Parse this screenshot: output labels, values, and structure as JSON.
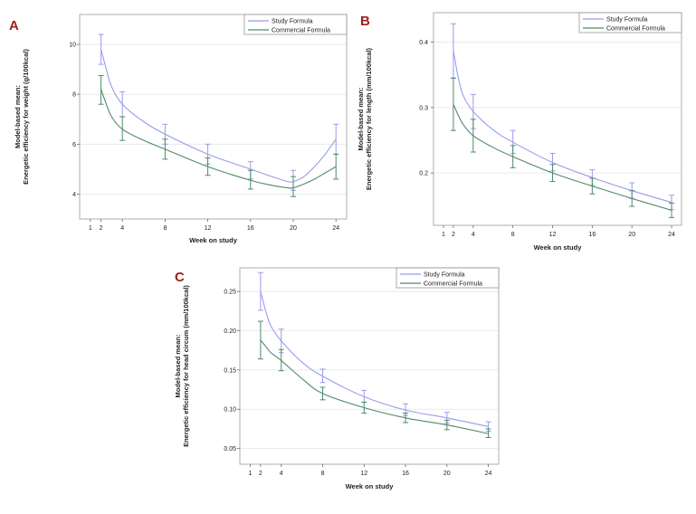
{
  "chart_data": [
    {
      "panel": "A",
      "type": "line",
      "ylabel_lines": [
        "Model-based mean:",
        "Energetic efficiency for weight (g/100kcal)"
      ],
      "xlabel": "Week on study",
      "x_ticks": [
        1,
        2,
        4,
        8,
        12,
        16,
        20,
        24
      ],
      "y_ticks": [
        4,
        6,
        8,
        10
      ],
      "xlim": [
        0,
        25
      ],
      "ylim": [
        3.0,
        11.2
      ],
      "grid": true,
      "legend_position": "top-right",
      "series": [
        {
          "name": "Study Formula",
          "color": "#9a9aec",
          "points": [
            {
              "x": 2,
              "y": 9.8,
              "lo": 9.2,
              "hi": 10.4
            },
            {
              "x": 4,
              "y": 7.6,
              "lo": 7.1,
              "hi": 8.1
            },
            {
              "x": 8,
              "y": 6.4,
              "lo": 6.0,
              "hi": 6.8
            },
            {
              "x": 12,
              "y": 5.6,
              "lo": 5.2,
              "hi": 6.0
            },
            {
              "x": 16,
              "y": 5.0,
              "lo": 4.6,
              "hi": 5.3
            },
            {
              "x": 20,
              "y": 4.55,
              "lo": 4.15,
              "hi": 4.95
            },
            {
              "x": 24,
              "y": 6.2,
              "lo": 5.6,
              "hi": 6.8
            }
          ],
          "curve": [
            [
              2,
              9.8
            ],
            [
              2.5,
              9.0
            ],
            [
              3,
              8.3
            ],
            [
              4,
              7.6
            ],
            [
              6,
              6.9
            ],
            [
              8,
              6.4
            ],
            [
              12,
              5.6
            ],
            [
              16,
              5.0
            ],
            [
              18,
              4.7
            ],
            [
              19.5,
              4.5
            ],
            [
              20,
              4.5
            ],
            [
              21,
              4.7
            ],
            [
              22,
              5.1
            ],
            [
              23,
              5.6
            ],
            [
              24,
              6.2
            ]
          ]
        },
        {
          "name": "Commercial Formula",
          "color": "#4e8a6c",
          "points": [
            {
              "x": 2,
              "y": 8.2,
              "lo": 7.6,
              "hi": 8.75
            },
            {
              "x": 4,
              "y": 6.6,
              "lo": 6.15,
              "hi": 7.1
            },
            {
              "x": 8,
              "y": 5.8,
              "lo": 5.4,
              "hi": 6.2
            },
            {
              "x": 12,
              "y": 5.1,
              "lo": 4.75,
              "hi": 5.45
            },
            {
              "x": 16,
              "y": 4.6,
              "lo": 4.2,
              "hi": 4.95
            },
            {
              "x": 20,
              "y": 4.3,
              "lo": 3.9,
              "hi": 4.7
            },
            {
              "x": 24,
              "y": 5.1,
              "lo": 4.6,
              "hi": 5.6
            }
          ],
          "curve": [
            [
              2,
              8.2
            ],
            [
              2.5,
              7.6
            ],
            [
              3,
              7.1
            ],
            [
              4,
              6.6
            ],
            [
              6,
              6.15
            ],
            [
              8,
              5.8
            ],
            [
              12,
              5.1
            ],
            [
              16,
              4.55
            ],
            [
              18,
              4.35
            ],
            [
              19.5,
              4.25
            ],
            [
              20,
              4.25
            ],
            [
              21,
              4.4
            ],
            [
              22,
              4.6
            ],
            [
              23,
              4.85
            ],
            [
              24,
              5.1
            ]
          ]
        }
      ]
    },
    {
      "panel": "B",
      "type": "line",
      "ylabel_lines": [
        "Model-based mean:",
        "Energetic efficiency for length (mm/100kcal)"
      ],
      "xlabel": "Week on study",
      "x_ticks": [
        1,
        2,
        4,
        8,
        12,
        16,
        20,
        24
      ],
      "y_ticks": [
        0.2,
        0.3,
        0.4
      ],
      "xlim": [
        0,
        25
      ],
      "ylim": [
        0.12,
        0.445
      ],
      "grid": true,
      "legend_position": "top-right",
      "series": [
        {
          "name": "Study Formula",
          "color": "#9a9aec",
          "points": [
            {
              "x": 2,
              "y": 0.387,
              "lo": 0.345,
              "hi": 0.428
            },
            {
              "x": 4,
              "y": 0.294,
              "lo": 0.268,
              "hi": 0.32
            },
            {
              "x": 8,
              "y": 0.247,
              "lo": 0.23,
              "hi": 0.265
            },
            {
              "x": 12,
              "y": 0.216,
              "lo": 0.203,
              "hi": 0.23
            },
            {
              "x": 16,
              "y": 0.193,
              "lo": 0.181,
              "hi": 0.205
            },
            {
              "x": 20,
              "y": 0.173,
              "lo": 0.161,
              "hi": 0.185
            },
            {
              "x": 24,
              "y": 0.155,
              "lo": 0.144,
              "hi": 0.166
            }
          ],
          "curve": [
            [
              2,
              0.387
            ],
            [
              2.5,
              0.345
            ],
            [
              3,
              0.318
            ],
            [
              4,
              0.294
            ],
            [
              6,
              0.266
            ],
            [
              8,
              0.247
            ],
            [
              12,
              0.216
            ],
            [
              16,
              0.193
            ],
            [
              20,
              0.173
            ],
            [
              24,
              0.155
            ]
          ]
        },
        {
          "name": "Commercial Formula",
          "color": "#4e8a6c",
          "points": [
            {
              "x": 2,
              "y": 0.305,
              "lo": 0.265,
              "hi": 0.345
            },
            {
              "x": 4,
              "y": 0.257,
              "lo": 0.232,
              "hi": 0.282
            },
            {
              "x": 8,
              "y": 0.225,
              "lo": 0.208,
              "hi": 0.242
            },
            {
              "x": 12,
              "y": 0.2,
              "lo": 0.187,
              "hi": 0.213
            },
            {
              "x": 16,
              "y": 0.18,
              "lo": 0.168,
              "hi": 0.192
            },
            {
              "x": 20,
              "y": 0.161,
              "lo": 0.149,
              "hi": 0.173
            },
            {
              "x": 24,
              "y": 0.143,
              "lo": 0.132,
              "hi": 0.154
            }
          ],
          "curve": [
            [
              2,
              0.305
            ],
            [
              2.5,
              0.288
            ],
            [
              3,
              0.274
            ],
            [
              4,
              0.257
            ],
            [
              6,
              0.239
            ],
            [
              8,
              0.225
            ],
            [
              12,
              0.2
            ],
            [
              16,
              0.18
            ],
            [
              20,
              0.161
            ],
            [
              24,
              0.143
            ]
          ]
        }
      ]
    },
    {
      "panel": "C",
      "type": "line",
      "ylabel_lines": [
        "Model-based mean:",
        "Energetic efficiency for head circum (mm/100kcal)"
      ],
      "xlabel": "Week on study",
      "x_ticks": [
        1,
        2,
        4,
        8,
        12,
        16,
        20,
        24
      ],
      "y_ticks": [
        0.05,
        0.1,
        0.15,
        0.2,
        0.25
      ],
      "y_tick_labels": [
        "0.05",
        "0.10",
        "0.15",
        "0.20",
        "0.25"
      ],
      "xlim": [
        0,
        25
      ],
      "ylim": [
        0.03,
        0.28
      ],
      "grid": true,
      "legend_position": "top-right",
      "series": [
        {
          "name": "Study Formula",
          "color": "#9a9aec",
          "points": [
            {
              "x": 2,
              "y": 0.25,
              "lo": 0.226,
              "hi": 0.274
            },
            {
              "x": 4,
              "y": 0.187,
              "lo": 0.172,
              "hi": 0.202
            },
            {
              "x": 8,
              "y": 0.142,
              "lo": 0.134,
              "hi": 0.151
            },
            {
              "x": 12,
              "y": 0.116,
              "lo": 0.109,
              "hi": 0.124
            },
            {
              "x": 16,
              "y": 0.099,
              "lo": 0.092,
              "hi": 0.107
            },
            {
              "x": 20,
              "y": 0.089,
              "lo": 0.082,
              "hi": 0.096
            },
            {
              "x": 24,
              "y": 0.078,
              "lo": 0.072,
              "hi": 0.084
            }
          ],
          "curve": [
            [
              2,
              0.25
            ],
            [
              2.5,
              0.225
            ],
            [
              3,
              0.206
            ],
            [
              4,
              0.187
            ],
            [
              6,
              0.16
            ],
            [
              8,
              0.142
            ],
            [
              12,
              0.116
            ],
            [
              16,
              0.099
            ],
            [
              20,
              0.089
            ],
            [
              24,
              0.078
            ]
          ]
        },
        {
          "name": "Commercial Formula",
          "color": "#4e8a6c",
          "points": [
            {
              "x": 2,
              "y": 0.188,
              "lo": 0.164,
              "hi": 0.212
            },
            {
              "x": 4,
              "y": 0.162,
              "lo": 0.149,
              "hi": 0.176
            },
            {
              "x": 8,
              "y": 0.12,
              "lo": 0.112,
              "hi": 0.128
            },
            {
              "x": 12,
              "y": 0.102,
              "lo": 0.095,
              "hi": 0.109
            },
            {
              "x": 16,
              "y": 0.089,
              "lo": 0.083,
              "hi": 0.095
            },
            {
              "x": 20,
              "y": 0.08,
              "lo": 0.074,
              "hi": 0.086
            },
            {
              "x": 24,
              "y": 0.069,
              "lo": 0.064,
              "hi": 0.075
            }
          ],
          "curve": [
            [
              2,
              0.188
            ],
            [
              2.5,
              0.18
            ],
            [
              3,
              0.172
            ],
            [
              4,
              0.162
            ],
            [
              6,
              0.139
            ],
            [
              8,
              0.12
            ],
            [
              12,
              0.102
            ],
            [
              16,
              0.089
            ],
            [
              20,
              0.08
            ],
            [
              24,
              0.069
            ]
          ]
        }
      ]
    }
  ]
}
